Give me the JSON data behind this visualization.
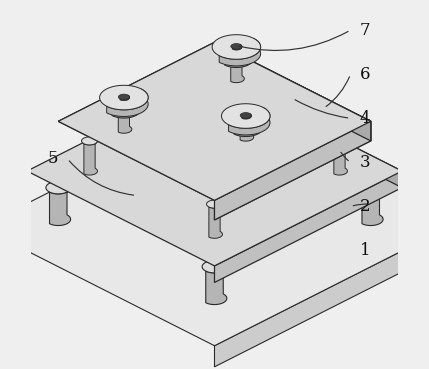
{
  "background_color": "#efefef",
  "line_color": "#2a2a2a",
  "label_fontsize": 12,
  "fig_width": 4.29,
  "fig_height": 3.69,
  "dpi": 100,
  "ox": 0.5,
  "oy": 0.09,
  "sx": 0.085,
  "sy": 0.043,
  "sz": 0.082,
  "colors": {
    "top_light": "#e8e8e8",
    "top_mid": "#d8d8d8",
    "side_front_light": "#cccccc",
    "side_front_dark": "#c0c0c0",
    "side_right_light": "#b8b8b8",
    "side_right_dark": "#aaaaaa",
    "cyl_top": "#dedede",
    "cyl_side": "#b5b5b5",
    "cyl_dark": "#888888",
    "gear_stripe": "#909090",
    "bolt_top": "#e2e2e2",
    "bolt_ring": "#444444",
    "edge": "#2a2a2a"
  }
}
